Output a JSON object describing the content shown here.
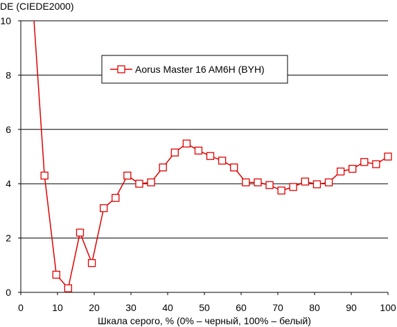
{
  "chart_data": {
    "type": "line",
    "ylabel": "DE (CIEDE2000)",
    "xlabel": "Шкала серого, % (0% – черный, 100% – белый)",
    "xlim": [
      0,
      100
    ],
    "ylim": [
      0,
      10
    ],
    "xticks": [
      0,
      10,
      20,
      30,
      40,
      50,
      60,
      70,
      80,
      90,
      100
    ],
    "yticks": [
      0,
      2,
      4,
      6,
      8,
      10
    ],
    "grid": "horizontal",
    "legend_position": "top-center",
    "colors": {
      "series": "#e00000",
      "grid": "#000000",
      "axis": "#000000"
    },
    "series": [
      {
        "name": "Aorus Master 16 AM6H (BYH)",
        "marker": "open-square",
        "x": [
          6.45,
          9.68,
          12.9,
          16.13,
          19.35,
          22.58,
          25.81,
          29.03,
          32.26,
          35.48,
          38.71,
          41.94,
          45.16,
          48.39,
          51.61,
          54.84,
          58.06,
          61.29,
          64.52,
          67.74,
          70.97,
          74.19,
          77.42,
          80.65,
          83.87,
          87.1,
          90.32,
          93.55,
          96.77,
          100
        ],
        "y": [
          4.3,
          0.65,
          0.15,
          2.2,
          1.08,
          3.1,
          3.48,
          4.3,
          4.0,
          4.05,
          4.6,
          5.15,
          5.48,
          5.22,
          5.02,
          4.85,
          4.6,
          4.05,
          4.05,
          3.95,
          3.75,
          3.88,
          4.08,
          3.98,
          4.05,
          4.45,
          4.55,
          4.8,
          4.72,
          5.0
        ],
        "leading_segment": {
          "x": [
            3.6,
            6.45
          ],
          "y": [
            10,
            4.3
          ]
        }
      }
    ]
  }
}
